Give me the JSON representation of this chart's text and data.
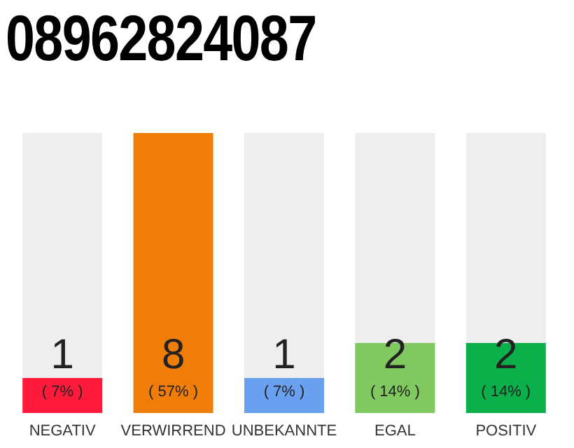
{
  "chart_data": {
    "type": "bar",
    "title": "08962824087",
    "categories": [
      "NEGATIV",
      "VERWIRREND",
      "UNBEKANNTE",
      "EGAL",
      "POSITIV"
    ],
    "values": [
      1,
      8,
      1,
      2,
      2
    ],
    "colors": [
      "#ff1a3c",
      "#f07d0a",
      "#6aa0f0",
      "#80c860",
      "#0bb04a"
    ],
    "value_labels": [
      "1\n( 7% )",
      "8\n( 57% )",
      "1\n( 7% )",
      "2\n( 14% )",
      "2\n( 14% )"
    ]
  }
}
